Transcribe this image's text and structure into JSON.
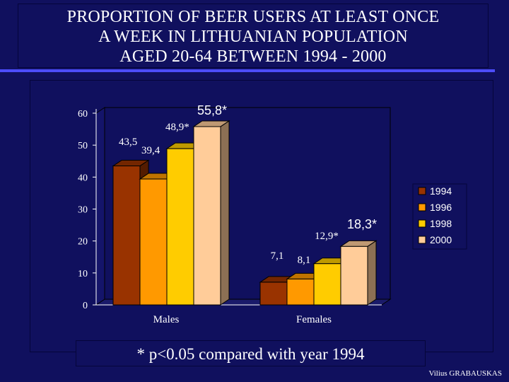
{
  "title": "PROPORTION OF BEER USERS AT LEAST ONCE\nA WEEK IN LITHUANIAN POPULATION\nAGED 20-64  BETWEEN 1994 - 2000",
  "footnote": "* p<0.05 compared with year 1994",
  "credit": "Vilius GRABAUSKAS",
  "chart_data": {
    "type": "bar",
    "categories": [
      "Males",
      "Females"
    ],
    "series": [
      {
        "name": "1994",
        "values": [
          43.5,
          7.1
        ],
        "labels": [
          "43,5",
          "7,1"
        ],
        "color": "#993300"
      },
      {
        "name": "1996",
        "values": [
          39.4,
          8.1
        ],
        "labels": [
          "39,4",
          "8,1"
        ],
        "color": "#ff9900"
      },
      {
        "name": "1998",
        "values": [
          48.9,
          12.9
        ],
        "labels": [
          "48,9*",
          "12,9*"
        ],
        "color": "#ffcc00"
      },
      {
        "name": "2000",
        "values": [
          55.8,
          18.3
        ],
        "labels": [
          "55,8*",
          "18,3*"
        ],
        "color": "#ffcc99"
      }
    ],
    "yticks": [
      "0",
      "10",
      "20",
      "30",
      "40",
      "50",
      "60"
    ],
    "ylim": [
      0,
      60
    ],
    "grid": false,
    "legend": "right",
    "bar_3d": true
  }
}
